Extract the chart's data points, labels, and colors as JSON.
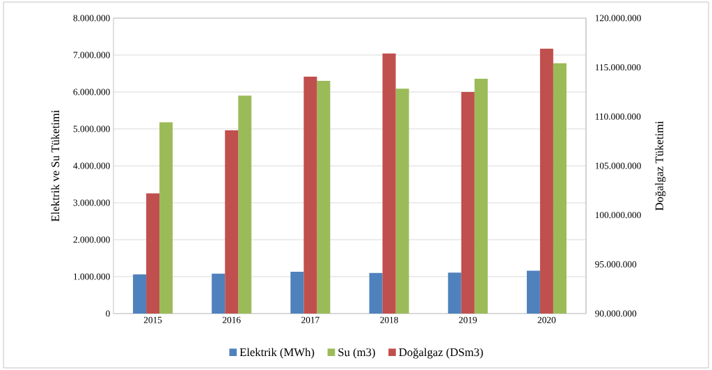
{
  "chart_data": {
    "type": "bar",
    "ylabel": "Elektrik ve Su Tüketimi",
    "y2label": "Doğalgaz Tüketimi",
    "categories": [
      "2015",
      "2016",
      "2017",
      "2018",
      "2019",
      "2020"
    ],
    "series": [
      {
        "name": "Elektrik (MWh)",
        "color": "#4f81bd",
        "values": [
          1060000,
          1080000,
          1130000,
          1100000,
          1110000,
          1160000
        ]
      },
      {
        "name": "Doğalgaz (DSm3)",
        "color": "#c0504d",
        "axis": "y2",
        "values": [
          102200000,
          108600000,
          114050000,
          116400000,
          112500000,
          116900000
        ]
      },
      {
        "name": "Su (m3)",
        "color": "#9bbb59",
        "values": [
          5180000,
          5900000,
          6300000,
          6090000,
          6360000,
          6780000
        ]
      }
    ],
    "ylim": [
      0,
      8000000
    ],
    "yticks": [
      0,
      {
        "value": 1000000,
        "label": "1.000.000"
      },
      {
        "value": 2000000,
        "label": "2.000.000"
      },
      {
        "value": 3000000,
        "label": "3.000.000"
      },
      {
        "value": 4000000,
        "label": "4.000.000"
      },
      {
        "value": 5000000,
        "label": "5.000.000"
      },
      {
        "value": 6000000,
        "label": "6.000.000"
      },
      {
        "value": 7000000,
        "label": "7.000.000"
      },
      {
        "value": 8000000,
        "label": "8.000.000"
      }
    ],
    "y2lim": [
      90000000,
      120000000
    ],
    "y2ticks": [
      {
        "value": 90000000,
        "label": "90.000.000"
      },
      {
        "value": 95000000,
        "label": "95.000.000"
      },
      {
        "value": 100000000,
        "label": "100.000.000"
      },
      {
        "value": 105000000,
        "label": "105.000.000"
      },
      {
        "value": 110000000,
        "label": "110.000.000"
      },
      {
        "value": 115000000,
        "label": "115.000.000"
      },
      {
        "value": 120000000,
        "label": "120.000.000"
      }
    ],
    "grid": "y",
    "legend": "bottom"
  }
}
